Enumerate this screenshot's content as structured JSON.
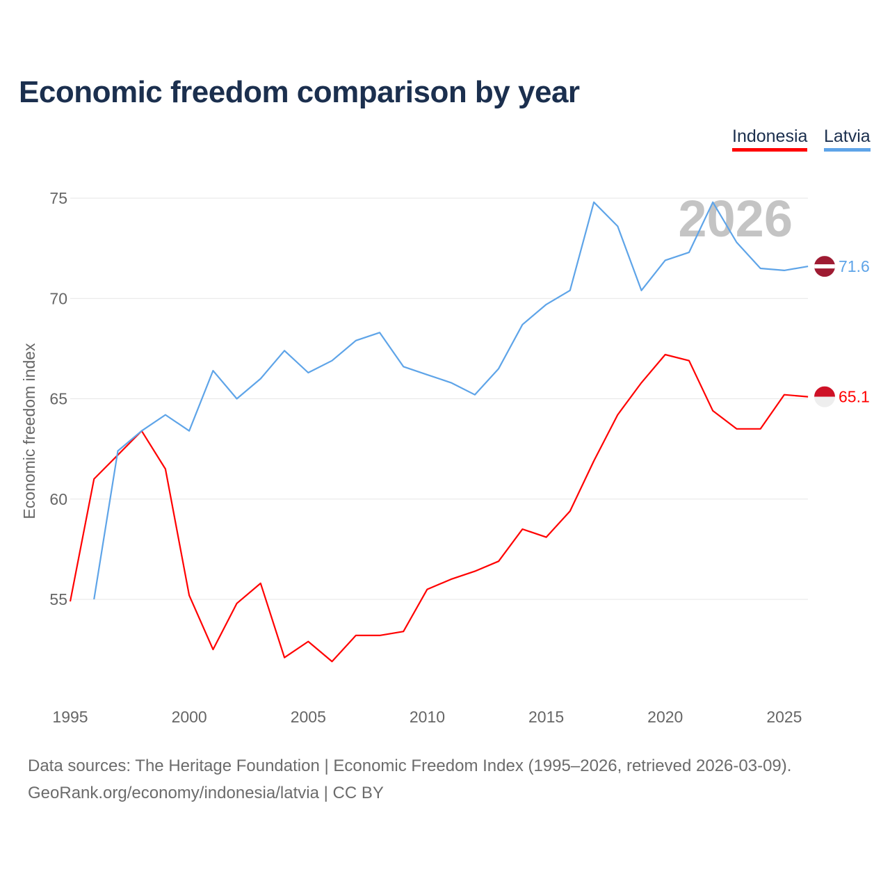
{
  "title": "Economic freedom comparison by year",
  "legend": [
    "Indonesia",
    "Latvia"
  ],
  "watermark_year": "2026",
  "footer": {
    "line1": "Data sources: The Heritage Foundation | Economic Freedom Index (1995–2026, retrieved 2026-03-09).",
    "line2": "GeoRank.org/economy/indonesia/latvia | CC BY"
  },
  "chart_data": {
    "type": "line",
    "title": "Economic freedom comparison by year",
    "xlabel": "",
    "ylabel": "Economic freedom index",
    "xlim": [
      1995,
      2026
    ],
    "ylim": [
      50.8,
      76.5
    ],
    "xticks": [
      1995,
      2000,
      2005,
      2010,
      2015,
      2020,
      2025
    ],
    "yticks": [
      55,
      60,
      65,
      70,
      75
    ],
    "grid": true,
    "legend_position": "top-right",
    "series": [
      {
        "name": "Indonesia",
        "color": "#ff0000",
        "end_label": "65.1",
        "x": [
          1995,
          1996,
          1997,
          1998,
          1999,
          2000,
          2001,
          2002,
          2003,
          2004,
          2005,
          2006,
          2007,
          2008,
          2009,
          2010,
          2011,
          2012,
          2013,
          2014,
          2015,
          2016,
          2017,
          2018,
          2019,
          2020,
          2021,
          2022,
          2023,
          2024,
          2025,
          2026
        ],
        "values": [
          54.9,
          61.0,
          62.2,
          63.4,
          61.5,
          55.2,
          52.5,
          54.8,
          55.8,
          52.1,
          52.9,
          51.9,
          53.2,
          53.2,
          53.4,
          55.5,
          56.0,
          56.4,
          56.9,
          58.5,
          58.1,
          59.4,
          61.9,
          64.2,
          65.8,
          67.2,
          66.9,
          64.4,
          63.5,
          63.5,
          65.2,
          65.1
        ]
      },
      {
        "name": "Latvia",
        "color": "#5ea4e8",
        "end_label": "71.6",
        "x": [
          1996,
          1997,
          1998,
          1999,
          2000,
          2001,
          2002,
          2003,
          2004,
          2005,
          2006,
          2007,
          2008,
          2009,
          2010,
          2011,
          2012,
          2013,
          2014,
          2015,
          2016,
          2017,
          2018,
          2019,
          2020,
          2021,
          2022,
          2023,
          2024,
          2025,
          2026
        ],
        "values": [
          55.0,
          62.4,
          63.4,
          64.2,
          63.4,
          66.4,
          65.0,
          66.0,
          67.4,
          66.3,
          66.9,
          67.9,
          68.3,
          66.6,
          66.2,
          65.8,
          65.2,
          66.5,
          68.7,
          69.7,
          70.4,
          74.8,
          73.6,
          70.4,
          71.9,
          72.3,
          74.8,
          72.8,
          71.5,
          71.4,
          71.6
        ]
      }
    ]
  }
}
